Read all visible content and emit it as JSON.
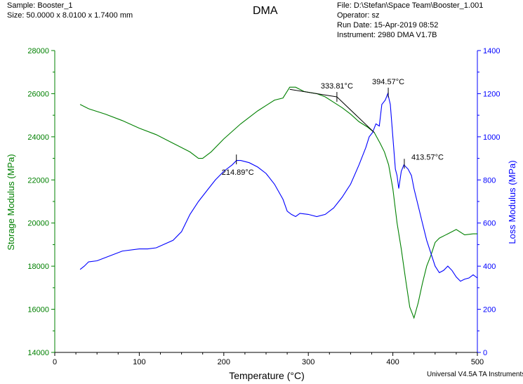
{
  "header": {
    "sample": "Sample: Booster_1",
    "size": "Size:  50.0000 x 8.0100 x 1.7400 mm",
    "title": "DMA",
    "file": "File: D:\\Stefan\\Space Team\\Booster_1.001",
    "operator": "Operator: sz",
    "run_date": "Run Date: 15-Apr-2019 08:52",
    "instrument": "Instrument: 2980 DMA V1.7B"
  },
  "footer": "Universal V4.5A TA Instruments",
  "colors": {
    "storage": "#008000",
    "loss": "#0000ff",
    "annotation": "#000000"
  },
  "chart_data": {
    "type": "line",
    "title": "DMA",
    "xlabel": "Temperature (°C)",
    "ylabel_left": "Storage Modulus (MPa)",
    "ylabel_right": "Loss Modulus (MPa)",
    "xlim": [
      0,
      500
    ],
    "ylim_left": [
      14000,
      28000
    ],
    "ylim_right": [
      0,
      1400
    ],
    "x_ticks": [
      "0",
      "100",
      "200",
      "300",
      "400",
      "500"
    ],
    "y_left_ticks": [
      "14000",
      "16000",
      "18000",
      "20000",
      "22000",
      "24000",
      "26000",
      "28000"
    ],
    "y_right_ticks": [
      "0",
      "200",
      "400",
      "600",
      "800",
      "1000",
      "1200",
      "1400"
    ],
    "grid": false,
    "series": [
      {
        "name": "Storage Modulus",
        "axis": "left",
        "color": "#008000",
        "points": [
          [
            30,
            25500
          ],
          [
            40,
            25300
          ],
          [
            60,
            25050
          ],
          [
            80,
            24750
          ],
          [
            100,
            24400
          ],
          [
            120,
            24100
          ],
          [
            140,
            23700
          ],
          [
            160,
            23300
          ],
          [
            170,
            23000
          ],
          [
            175,
            23000
          ],
          [
            185,
            23300
          ],
          [
            200,
            23900
          ],
          [
            220,
            24600
          ],
          [
            240,
            25200
          ],
          [
            260,
            25700
          ],
          [
            270,
            25800
          ],
          [
            278,
            26300
          ],
          [
            285,
            26300
          ],
          [
            295,
            26100
          ],
          [
            310,
            26000
          ],
          [
            320,
            25850
          ],
          [
            330,
            25600
          ],
          [
            340,
            25350
          ],
          [
            350,
            25050
          ],
          [
            360,
            24700
          ],
          [
            370,
            24450
          ],
          [
            378,
            24200
          ],
          [
            385,
            23700
          ],
          [
            390,
            23300
          ],
          [
            395,
            22700
          ],
          [
            400,
            21600
          ],
          [
            405,
            20000
          ],
          [
            410,
            18800
          ],
          [
            415,
            17400
          ],
          [
            420,
            16100
          ],
          [
            425,
            15600
          ],
          [
            430,
            16300
          ],
          [
            435,
            17200
          ],
          [
            440,
            18000
          ],
          [
            445,
            18500
          ],
          [
            450,
            19100
          ],
          [
            455,
            19300
          ],
          [
            465,
            19500
          ],
          [
            475,
            19700
          ],
          [
            485,
            19450
          ],
          [
            495,
            19500
          ],
          [
            500,
            19500
          ]
        ]
      },
      {
        "name": "Loss Modulus",
        "axis": "right",
        "color": "#0000ff",
        "points": [
          [
            30,
            385
          ],
          [
            35,
            400
          ],
          [
            40,
            420
          ],
          [
            50,
            425
          ],
          [
            60,
            440
          ],
          [
            80,
            470
          ],
          [
            100,
            480
          ],
          [
            110,
            480
          ],
          [
            120,
            485
          ],
          [
            140,
            520
          ],
          [
            150,
            560
          ],
          [
            160,
            640
          ],
          [
            170,
            700
          ],
          [
            180,
            750
          ],
          [
            190,
            800
          ],
          [
            200,
            840
          ],
          [
            210,
            870
          ],
          [
            215,
            890
          ],
          [
            220,
            890
          ],
          [
            230,
            880
          ],
          [
            240,
            860
          ],
          [
            250,
            830
          ],
          [
            260,
            780
          ],
          [
            270,
            710
          ],
          [
            275,
            655
          ],
          [
            280,
            640
          ],
          [
            285,
            630
          ],
          [
            290,
            645
          ],
          [
            300,
            640
          ],
          [
            310,
            630
          ],
          [
            320,
            640
          ],
          [
            330,
            670
          ],
          [
            340,
            720
          ],
          [
            345,
            750
          ],
          [
            350,
            780
          ],
          [
            360,
            870
          ],
          [
            368,
            950
          ],
          [
            372,
            1000
          ],
          [
            376,
            1020
          ],
          [
            380,
            1060
          ],
          [
            384,
            1050
          ],
          [
            387,
            1150
          ],
          [
            391,
            1170
          ],
          [
            394,
            1200
          ],
          [
            397,
            1150
          ],
          [
            400,
            1000
          ],
          [
            403,
            850
          ],
          [
            405,
            820
          ],
          [
            407,
            760
          ],
          [
            410,
            840
          ],
          [
            413,
            870
          ],
          [
            418,
            850
          ],
          [
            422,
            820
          ],
          [
            425,
            760
          ],
          [
            430,
            680
          ],
          [
            435,
            600
          ],
          [
            440,
            520
          ],
          [
            445,
            460
          ],
          [
            450,
            400
          ],
          [
            455,
            370
          ],
          [
            460,
            380
          ],
          [
            465,
            400
          ],
          [
            470,
            380
          ],
          [
            475,
            350
          ],
          [
            480,
            330
          ],
          [
            485,
            340
          ],
          [
            490,
            345
          ],
          [
            495,
            360
          ],
          [
            500,
            345
          ]
        ]
      }
    ],
    "annotations": [
      {
        "text": "214.89°C",
        "x": 214.89,
        "y": 895,
        "axis": "right",
        "label_side": "below"
      },
      {
        "text": "333.81°C",
        "x": 333.81,
        "y": 25850,
        "axis": "left",
        "label_side": "above"
      },
      {
        "text": "394.57°C",
        "x": 394.57,
        "y": 1205,
        "axis": "right",
        "label_side": "above"
      },
      {
        "text": "413.57°C",
        "x": 413.57,
        "y": 875,
        "axis": "right",
        "label_side": "right"
      }
    ],
    "onset_lines": [
      {
        "axis": "left",
        "from": [
          278,
          26200
        ],
        "to": [
          333.81,
          25850
        ]
      },
      {
        "axis": "left",
        "from": [
          333.81,
          25850
        ],
        "to": [
          378,
          24200
        ]
      }
    ]
  }
}
